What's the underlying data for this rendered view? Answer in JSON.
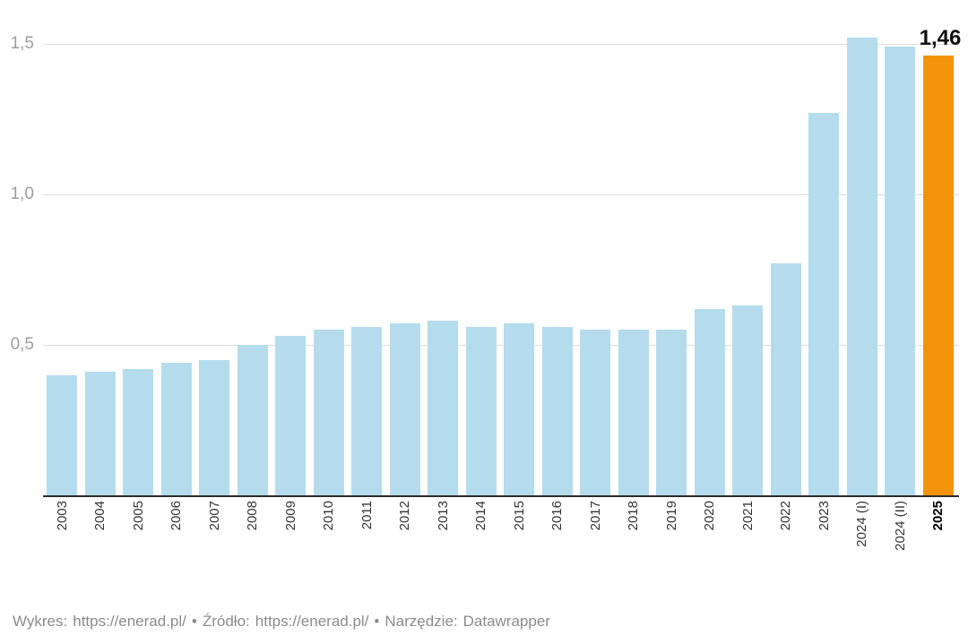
{
  "chart_data": {
    "type": "bar",
    "title": "",
    "xlabel": "",
    "ylabel": "",
    "categories": [
      "2003",
      "2004",
      "2005",
      "2006",
      "2007",
      "2008",
      "2009",
      "2010",
      "2011",
      "2012",
      "2013",
      "2014",
      "2015",
      "2016",
      "2017",
      "2018",
      "2019",
      "2020",
      "2021",
      "2022",
      "2023",
      "2024 (I)",
      "2024 (II)",
      "2025"
    ],
    "values": [
      0.4,
      0.41,
      0.42,
      0.44,
      0.45,
      0.5,
      0.53,
      0.55,
      0.56,
      0.57,
      0.58,
      0.56,
      0.57,
      0.56,
      0.55,
      0.55,
      0.55,
      0.62,
      0.63,
      0.77,
      1.27,
      1.52,
      1.49,
      1.46
    ],
    "highlight_index": 23,
    "highlight_category": "2025",
    "value_label": "1,46",
    "y_ticks": [
      {
        "label": "0,5",
        "value": 0.5
      },
      {
        "label": "1,0",
        "value": 1.0
      },
      {
        "label": "1,5",
        "value": 1.5
      }
    ],
    "ylim": [
      0,
      1.55
    ],
    "grid": true,
    "legend": false,
    "colors": {
      "bar": "#b5dcec",
      "highlight": "#f3930b",
      "gridline": "#dcdcdc",
      "axis_line": "#2a2a2a",
      "y_tick_text": "#9e9e9e",
      "x_tick_text": "#333333",
      "value_label_text": "#111111",
      "footer_text": "#8b8b8b"
    }
  },
  "footer": {
    "chart_label": "Wykres:",
    "chart_link": "https://enerad.pl/",
    "separator": "•",
    "source_label": "Źródło:",
    "source_link": "https://enerad.pl/",
    "tool_label": "Narzędzie:",
    "tool_link": "Datawrapper"
  }
}
